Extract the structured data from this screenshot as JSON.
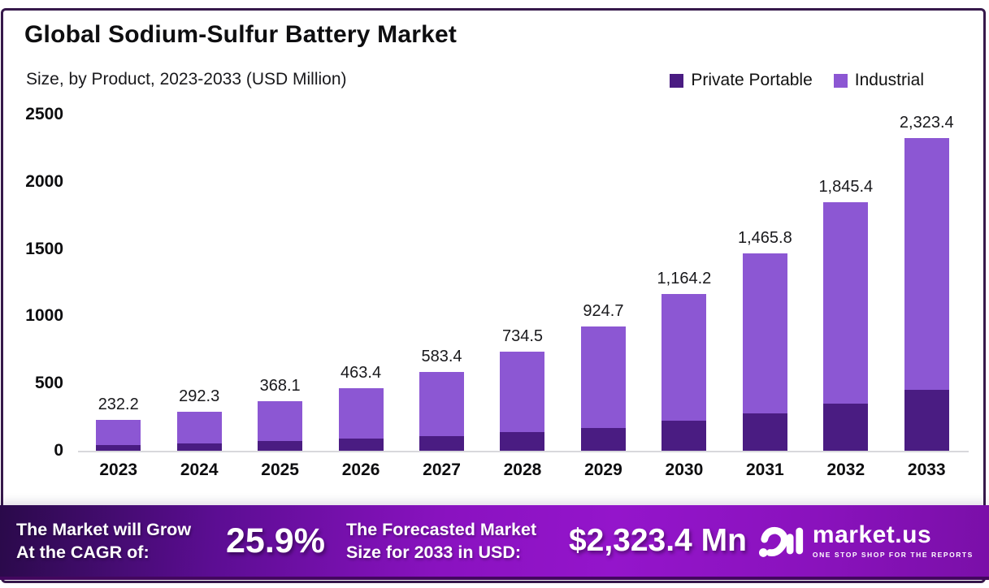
{
  "header": {
    "title": "Global Sodium-Sulfur Battery Market",
    "subtitle": "Size, by Product, 2023-2033 (USD Million)"
  },
  "legend": {
    "items": [
      {
        "label": "Private Portable",
        "color": "#4a1c82"
      },
      {
        "label": "Industrial",
        "color": "#8c57d3"
      }
    ]
  },
  "chart_data": {
    "type": "bar",
    "stacked": true,
    "title": "Global Sodium-Sulfur Battery Market",
    "subtitle": "Size, by Product, 2023-2033 (USD Million)",
    "unit": "USD Million",
    "categories": [
      "2023",
      "2024",
      "2025",
      "2026",
      "2027",
      "2028",
      "2029",
      "2030",
      "2031",
      "2032",
      "2033"
    ],
    "totals": [
      232.2,
      292.3,
      368.1,
      463.4,
      583.4,
      734.5,
      924.7,
      1164.2,
      1465.8,
      1845.4,
      2323.4
    ],
    "total_labels": [
      "232.2",
      "292.3",
      "368.1",
      "463.4",
      "583.4",
      "734.5",
      "924.7",
      "1,164.2",
      "1,465.8",
      "1,845.4",
      "2,323.4"
    ],
    "series": [
      {
        "name": "Private Portable",
        "color": "#4a1c82",
        "values": [
          44,
          56,
          70,
          88,
          111,
          140,
          171,
          221,
          279,
          351,
          450
        ]
      },
      {
        "name": "Industrial",
        "color": "#8c57d3",
        "values": [
          188.2,
          236.3,
          298.1,
          375.4,
          472.4,
          594.5,
          753.7,
          943.2,
          1186.8,
          1494.4,
          1873.4
        ]
      }
    ],
    "xlabel": "",
    "ylabel": "",
    "ylim": [
      0,
      2500
    ],
    "yticks": [
      0,
      500,
      1000,
      1500,
      2000,
      2500
    ],
    "grid": false,
    "legend_position": "top-right"
  },
  "banner": {
    "cagr_label_line1": "The Market will Grow",
    "cagr_label_line2": "At the CAGR of:",
    "cagr_value": "25.9%",
    "forecast_label_line1": "The Forecasted Market",
    "forecast_label_line2": "Size for 2033 in USD:",
    "forecast_value": "$2,323.4 Mn",
    "logo_text": "market.us",
    "logo_tagline": "ONE STOP SHOP FOR THE REPORTS"
  },
  "colors": {
    "frame_border": "#36194b",
    "private_portable": "#4a1c82",
    "industrial": "#8c57d3",
    "banner_gradient_start": "#2a0a4a",
    "banner_gradient_mid": "#9415cb",
    "banner_gradient_end": "#7a0fa8",
    "baseline": "#d8d8dc",
    "text": "#0e0e10"
  }
}
